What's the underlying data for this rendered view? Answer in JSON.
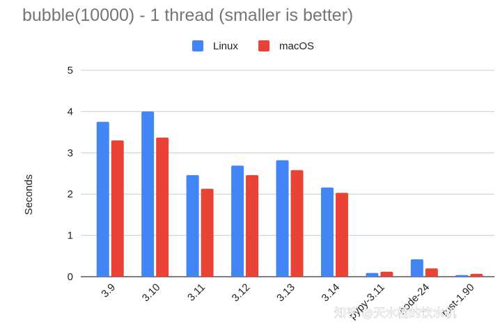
{
  "chart_data": {
    "type": "bar",
    "title": "bubble(10000) - 1 thread (smaller is better)",
    "xlabel": "",
    "ylabel": "Seconds",
    "ylim": [
      0,
      5
    ],
    "yticks": [
      "0",
      "1",
      "2",
      "3",
      "4",
      "5"
    ],
    "grid": true,
    "legend_position": "top",
    "categories": [
      "3.9",
      "3.10",
      "3.11",
      "3.12",
      "3.13",
      "3.14",
      "pypy-3.11",
      "node-24",
      "rust-1.90"
    ],
    "series": [
      {
        "name": "Linux",
        "color": "#4285f4",
        "values": [
          3.75,
          4.0,
          2.46,
          2.69,
          2.82,
          2.16,
          0.09,
          0.42,
          0.04
        ]
      },
      {
        "name": "macOS",
        "color": "#ea4335",
        "values": [
          3.3,
          3.37,
          2.13,
          2.46,
          2.58,
          2.03,
          0.12,
          0.2,
          0.07
        ]
      }
    ]
  },
  "watermark": "知乎 @天水桶的饮水机"
}
